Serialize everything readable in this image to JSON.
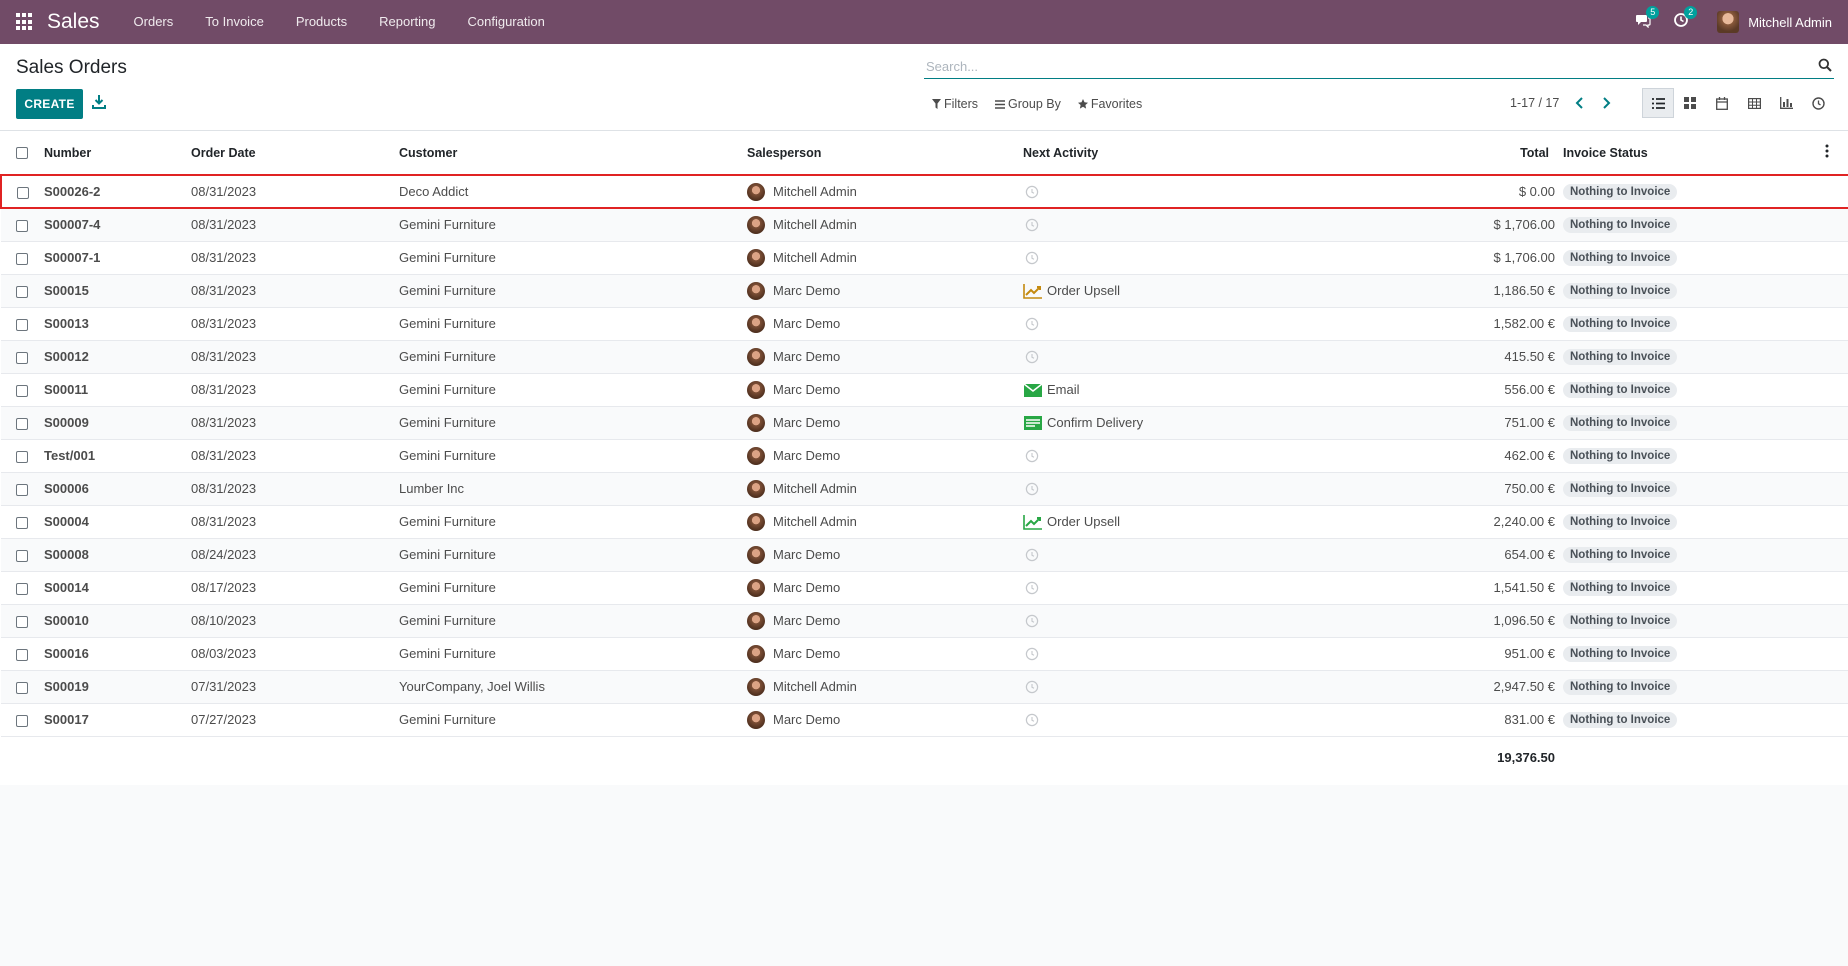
{
  "navbar": {
    "brand": "Sales",
    "menu": [
      "Orders",
      "To Invoice",
      "Products",
      "Reporting",
      "Configuration"
    ],
    "messages_count": "5",
    "activities_count": "2",
    "user_name": "Mitchell Admin",
    "color": "#714b67"
  },
  "control_panel": {
    "title": "Sales Orders",
    "create_label": "CREATE",
    "search_placeholder": "Search...",
    "filters_label": "Filters",
    "group_by_label": "Group By",
    "favorites_label": "Favorites",
    "pager": "1-17 / 17",
    "active_view": "list",
    "views": [
      "list",
      "kanban",
      "calendar",
      "pivot",
      "graph",
      "activity"
    ]
  },
  "table": {
    "headers": {
      "number": "Number",
      "order_date": "Order Date",
      "customer": "Customer",
      "salesperson": "Salesperson",
      "next_activity": "Next Activity",
      "total": "Total",
      "invoice_status": "Invoice Status"
    },
    "rows": [
      {
        "number": "S00026-2",
        "date": "08/31/2023",
        "customer": "Deco Addict",
        "salesperson": "Mitchell Admin",
        "activity": "",
        "activity_type": "clock",
        "total": "$ 0.00",
        "status": "Nothing to Invoice"
      },
      {
        "number": "S00007-4",
        "date": "08/31/2023",
        "customer": "Gemini Furniture",
        "salesperson": "Mitchell Admin",
        "activity": "",
        "activity_type": "clock",
        "total": "$ 1,706.00",
        "status": "Nothing to Invoice"
      },
      {
        "number": "S00007-1",
        "date": "08/31/2023",
        "customer": "Gemini Furniture",
        "salesperson": "Mitchell Admin",
        "activity": "",
        "activity_type": "clock",
        "total": "$ 1,706.00",
        "status": "Nothing to Invoice"
      },
      {
        "number": "S00015",
        "date": "08/31/2023",
        "customer": "Gemini Furniture",
        "salesperson": "Marc Demo",
        "activity": "Order Upsell",
        "activity_type": "upsell-orange",
        "total": "1,186.50 €",
        "status": "Nothing to Invoice"
      },
      {
        "number": "S00013",
        "date": "08/31/2023",
        "customer": "Gemini Furniture",
        "salesperson": "Marc Demo",
        "activity": "",
        "activity_type": "clock",
        "total": "1,582.00 €",
        "status": "Nothing to Invoice"
      },
      {
        "number": "S00012",
        "date": "08/31/2023",
        "customer": "Gemini Furniture",
        "salesperson": "Marc Demo",
        "activity": "",
        "activity_type": "clock",
        "total": "415.50 €",
        "status": "Nothing to Invoice"
      },
      {
        "number": "S00011",
        "date": "08/31/2023",
        "customer": "Gemini Furniture",
        "salesperson": "Marc Demo",
        "activity": "Email",
        "activity_type": "email",
        "total": "556.00 €",
        "status": "Nothing to Invoice"
      },
      {
        "number": "S00009",
        "date": "08/31/2023",
        "customer": "Gemini Furniture",
        "salesperson": "Marc Demo",
        "activity": "Confirm Delivery",
        "activity_type": "delivery",
        "total": "751.00 €",
        "status": "Nothing to Invoice"
      },
      {
        "number": "Test/001",
        "date": "08/31/2023",
        "customer": "Gemini Furniture",
        "salesperson": "Marc Demo",
        "activity": "",
        "activity_type": "clock",
        "total": "462.00 €",
        "status": "Nothing to Invoice"
      },
      {
        "number": "S00006",
        "date": "08/31/2023",
        "customer": "Lumber Inc",
        "salesperson": "Mitchell Admin",
        "activity": "",
        "activity_type": "clock",
        "total": "750.00 €",
        "status": "Nothing to Invoice"
      },
      {
        "number": "S00004",
        "date": "08/31/2023",
        "customer": "Gemini Furniture",
        "salesperson": "Mitchell Admin",
        "activity": "Order Upsell",
        "activity_type": "upsell-green",
        "total": "2,240.00 €",
        "status": "Nothing to Invoice"
      },
      {
        "number": "S00008",
        "date": "08/24/2023",
        "customer": "Gemini Furniture",
        "salesperson": "Marc Demo",
        "activity": "",
        "activity_type": "clock",
        "total": "654.00 €",
        "status": "Nothing to Invoice"
      },
      {
        "number": "S00014",
        "date": "08/17/2023",
        "customer": "Gemini Furniture",
        "salesperson": "Marc Demo",
        "activity": "",
        "activity_type": "clock",
        "total": "1,541.50 €",
        "status": "Nothing to Invoice"
      },
      {
        "number": "S00010",
        "date": "08/10/2023",
        "customer": "Gemini Furniture",
        "salesperson": "Marc Demo",
        "activity": "",
        "activity_type": "clock",
        "total": "1,096.50 €",
        "status": "Nothing to Invoice"
      },
      {
        "number": "S00016",
        "date": "08/03/2023",
        "customer": "Gemini Furniture",
        "salesperson": "Marc Demo",
        "activity": "",
        "activity_type": "clock",
        "total": "951.00 €",
        "status": "Nothing to Invoice"
      },
      {
        "number": "S00019",
        "date": "07/31/2023",
        "customer": "YourCompany, Joel Willis",
        "salesperson": "Mitchell Admin",
        "activity": "",
        "activity_type": "clock",
        "total": "2,947.50 €",
        "status": "Nothing to Invoice"
      },
      {
        "number": "S00017",
        "date": "07/27/2023",
        "customer": "Gemini Furniture",
        "salesperson": "Marc Demo",
        "activity": "",
        "activity_type": "clock",
        "total": "831.00 €",
        "status": "Nothing to Invoice"
      }
    ],
    "grand_total": "19,376.50",
    "selected_row": 0
  }
}
